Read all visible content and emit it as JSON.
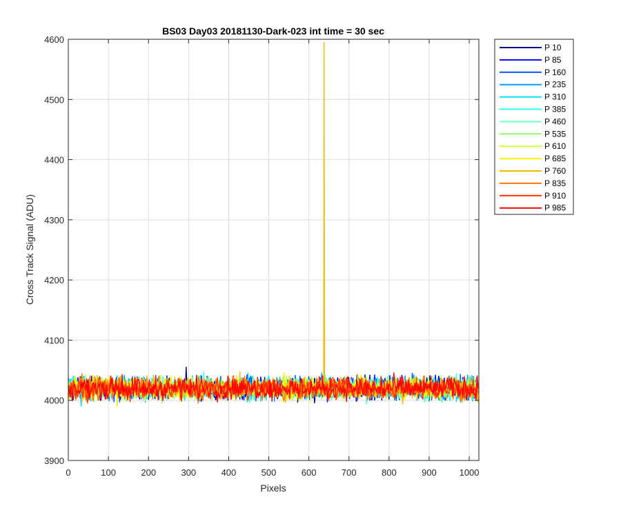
{
  "chart_data": {
    "type": "line",
    "title": "BS03 Day03 20181130-Dark-023 int time = 30 sec",
    "xlabel": "Pixels",
    "ylabel": "Cross Track Signal (ADU)",
    "xlim": [
      0,
      1024
    ],
    "ylim": [
      3900,
      4600
    ],
    "xticks": [
      0,
      100,
      200,
      300,
      400,
      500,
      600,
      700,
      800,
      900,
      1000
    ],
    "yticks": [
      3900,
      4000,
      4100,
      4200,
      4300,
      4400,
      4500,
      4600
    ],
    "grid": true,
    "legend_position": "outside-top-right",
    "baseline_mean": 4020,
    "baseline_range": [
      3990,
      4055
    ],
    "spike": {
      "series": "P 760",
      "x": 638,
      "y": 4595
    },
    "series": [
      {
        "name": "P 10",
        "color": "#00008F"
      },
      {
        "name": "P 85",
        "color": "#0000EF"
      },
      {
        "name": "P 160",
        "color": "#0050FF"
      },
      {
        "name": "P 235",
        "color": "#009FFF"
      },
      {
        "name": "P 310",
        "color": "#00DFFF"
      },
      {
        "name": "P 385",
        "color": "#30FFEF"
      },
      {
        "name": "P 460",
        "color": "#70FFBF"
      },
      {
        "name": "P 535",
        "color": "#8FFF70"
      },
      {
        "name": "P 610",
        "color": "#CFFF30"
      },
      {
        "name": "P 685",
        "color": "#FFEF00"
      },
      {
        "name": "P 760",
        "color": "#F2B900"
      },
      {
        "name": "P 835",
        "color": "#FF7000"
      },
      {
        "name": "P 910",
        "color": "#FF3000"
      },
      {
        "name": "P 985",
        "color": "#FF0000"
      }
    ]
  }
}
